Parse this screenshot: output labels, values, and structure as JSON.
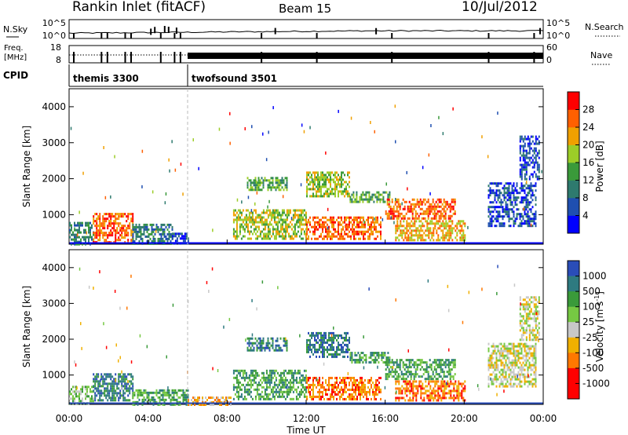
{
  "header": {
    "station": "Rankin Inlet (fitACF)",
    "beam": "Beam 15",
    "date": "10/Jul/2012"
  },
  "nsky_panel": {
    "left_label": "N.Sky",
    "left_ticks": [
      "10^5",
      "10^0"
    ],
    "right_ticks": [
      "10^5",
      "10^0"
    ],
    "right_label": "N.Search",
    "right_style": "dotted"
  },
  "freq_panel": {
    "left_label_line1": "Freq.",
    "left_label_line2": "[MHz]",
    "left_ticks": [
      "18",
      "8"
    ],
    "right_ticks": [
      "60",
      "0"
    ],
    "right_label": "Nave",
    "right_style": "dotted"
  },
  "cpid_panel": {
    "label": "CPID",
    "programs": [
      {
        "name": "themis 3300",
        "start_h": 0
      },
      {
        "name": "twofsound 3501",
        "start_h": 6
      }
    ]
  },
  "x_axis": {
    "ticks": [
      "00:00",
      "04:00",
      "08:00",
      "12:00",
      "16:00",
      "20:00",
      "00:00"
    ],
    "tick_hours": [
      0,
      4,
      8,
      12,
      16,
      20,
      24
    ],
    "label": "Time UT",
    "range_h": [
      0,
      24
    ]
  },
  "chart_data": [
    {
      "type": "heatmap",
      "quantity": "power",
      "ylabel": "Slant Range [km]",
      "yticks": [
        1000,
        2000,
        3000,
        4000
      ],
      "ylim": [
        180,
        4500
      ],
      "colorbar": {
        "label": "Power [dB]",
        "ticks": [
          "4",
          "8",
          "12",
          "16",
          "20",
          "24",
          "28"
        ],
        "colors": [
          "#0000ff",
          "#1f4fb0",
          "#2e7a6e",
          "#3a9a3a",
          "#9ccd28",
          "#f0a000",
          "#ff6000",
          "#ff0000"
        ]
      },
      "regions": [
        {
          "t": [
            0.0,
            1.2
          ],
          "r": [
            200,
            800
          ],
          "level": 2
        },
        {
          "t": [
            1.2,
            3.2
          ],
          "r": [
            200,
            1050
          ],
          "level": 6
        },
        {
          "t": [
            3.2,
            5.2
          ],
          "r": [
            200,
            750
          ],
          "level": 2
        },
        {
          "t": [
            5.2,
            6.0
          ],
          "r": [
            200,
            500
          ],
          "level": 1
        },
        {
          "t": [
            8.3,
            12.0
          ],
          "r": [
            350,
            1150
          ],
          "level": 4
        },
        {
          "t": [
            9.0,
            11.0
          ],
          "r": [
            1700,
            2050
          ],
          "level": 3
        },
        {
          "t": [
            12.0,
            14.2
          ],
          "r": [
            1500,
            2200
          ],
          "level": 4
        },
        {
          "t": [
            12.0,
            15.8
          ],
          "r": [
            300,
            950
          ],
          "level": 6
        },
        {
          "t": [
            14.2,
            16.2
          ],
          "r": [
            1350,
            1650
          ],
          "level": 3
        },
        {
          "t": [
            16.0,
            19.5
          ],
          "r": [
            900,
            1450
          ],
          "level": 6
        },
        {
          "t": [
            16.5,
            20.0
          ],
          "r": [
            300,
            850
          ],
          "level": 5
        },
        {
          "t": [
            21.2,
            23.6
          ],
          "r": [
            700,
            1900
          ],
          "level": 1
        },
        {
          "t": [
            22.8,
            23.8
          ],
          "r": [
            2000,
            3200
          ],
          "level": 1
        }
      ]
    },
    {
      "type": "heatmap",
      "quantity": "velocity",
      "ylabel": "Slant Range [km]",
      "yticks": [
        1000,
        2000,
        3000,
        4000
      ],
      "ylim": [
        180,
        4500
      ],
      "colorbar": {
        "label": "Velocity [m s",
        "label_sup": "-1",
        "label_end": "]",
        "ticks": [
          "1000",
          "500",
          "100",
          "25",
          "-25",
          "-100",
          "-500",
          "-1000"
        ],
        "colors": [
          "#2a4db8",
          "#2e7a80",
          "#3a9a3a",
          "#76c843",
          "#c8c8c8",
          "#f0b000",
          "#ff7800",
          "#ff0000"
        ]
      },
      "regions": [
        {
          "t": [
            0.0,
            1.2
          ],
          "r": [
            200,
            700
          ],
          "level": 3
        },
        {
          "t": [
            1.2,
            3.2
          ],
          "r": [
            300,
            1050
          ],
          "level": 1
        },
        {
          "t": [
            3.2,
            6.0
          ],
          "r": [
            200,
            600
          ],
          "level": 2
        },
        {
          "t": [
            6.0,
            8.3
          ],
          "r": [
            200,
            400
          ],
          "level": 5
        },
        {
          "t": [
            8.3,
            12.0
          ],
          "r": [
            350,
            1150
          ],
          "level": 2
        },
        {
          "t": [
            9.0,
            11.0
          ],
          "r": [
            1700,
            2050
          ],
          "level": 1
        },
        {
          "t": [
            12.0,
            14.2
          ],
          "r": [
            1500,
            2200
          ],
          "level": 1
        },
        {
          "t": [
            12.0,
            15.8
          ],
          "r": [
            300,
            950
          ],
          "level": 6
        },
        {
          "t": [
            14.2,
            16.2
          ],
          "r": [
            1350,
            1650
          ],
          "level": 2
        },
        {
          "t": [
            16.0,
            19.5
          ],
          "r": [
            900,
            1450
          ],
          "level": 2
        },
        {
          "t": [
            16.5,
            20.0
          ],
          "r": [
            300,
            850
          ],
          "level": 6
        },
        {
          "t": [
            21.2,
            23.6
          ],
          "r": [
            700,
            1900
          ],
          "level": 4
        },
        {
          "t": [
            22.8,
            23.8
          ],
          "r": [
            2000,
            3200
          ],
          "level": 4
        }
      ]
    }
  ]
}
